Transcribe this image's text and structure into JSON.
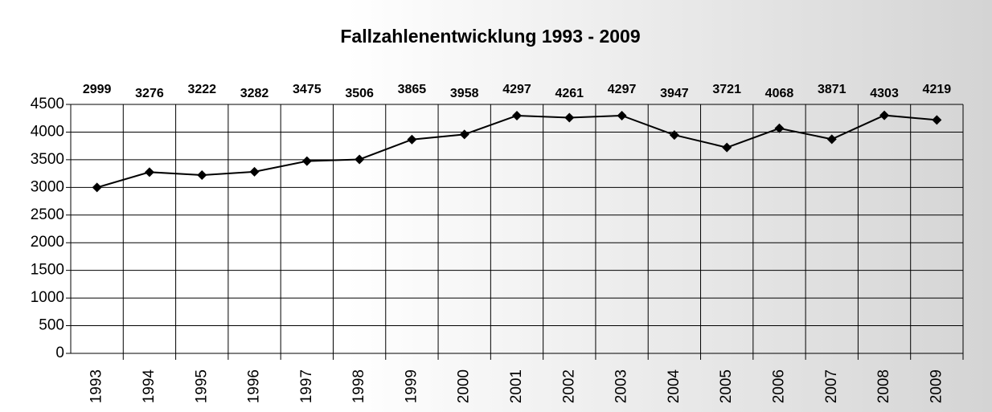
{
  "chart_data": {
    "type": "line",
    "title": "Fallzahlenentwicklung 1993 - 2009",
    "categories": [
      "1993",
      "1994",
      "1995",
      "1996",
      "1997",
      "1998",
      "1999",
      "2000",
      "2001",
      "2002",
      "2003",
      "2004",
      "2005",
      "2006",
      "2007",
      "2008",
      "2009"
    ],
    "values": [
      2999,
      3276,
      3222,
      3282,
      3475,
      3506,
      3865,
      3958,
      4297,
      4261,
      4297,
      3947,
      3721,
      4068,
      3871,
      4303,
      4219
    ],
    "color": "#000000",
    "ylim": [
      0,
      4500
    ],
    "yticks": [
      0,
      500,
      1000,
      1500,
      2000,
      2500,
      3000,
      3500,
      4000,
      4500
    ],
    "grid": true
  }
}
